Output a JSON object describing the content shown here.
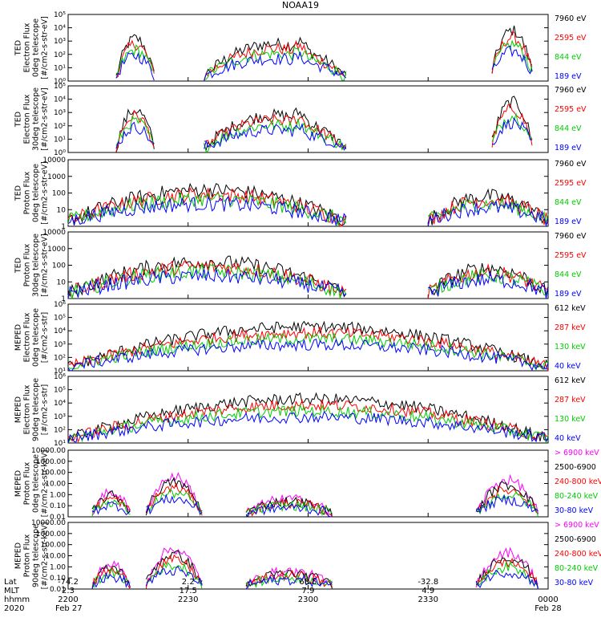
{
  "title": "NOAA19",
  "chart_data": {
    "type": "line",
    "panels": [
      {
        "ylabel": [
          "TED",
          "Electron Flux",
          "0deg telescope",
          "[#/cm2-s-str-eV]"
        ],
        "yticks": [
          "10⁰",
          "10¹",
          "10²",
          "10³",
          "10⁴",
          "10⁵"
        ],
        "ylim": [
          1,
          100000
        ],
        "scale": "log",
        "legend": [
          {
            "label": "7960 eV",
            "color": "#000000"
          },
          {
            "label": "2595 eV",
            "color": "#ff0000"
          },
          {
            "label": "844 eV",
            "color": "#00cc00"
          },
          {
            "label": "189 eV",
            "color": "#0000ff"
          }
        ]
      },
      {
        "ylabel": [
          "TED",
          "Electron Flux",
          "30deg telescope",
          "[#/cm2-s-str-eV]"
        ],
        "yticks": [
          "10⁰",
          "10¹",
          "10²",
          "10³",
          "10⁴",
          "10⁵"
        ],
        "ylim": [
          1,
          100000
        ],
        "scale": "log",
        "legend": [
          {
            "label": "7960 eV",
            "color": "#000000"
          },
          {
            "label": "2595 eV",
            "color": "#ff0000"
          },
          {
            "label": "844 eV",
            "color": "#00cc00"
          },
          {
            "label": "189 eV",
            "color": "#0000ff"
          }
        ]
      },
      {
        "ylabel": [
          "TED",
          "Proton Flux",
          "0deg telescope",
          "[#/cm2-s-str-eV]"
        ],
        "yticks": [
          "1",
          "10",
          "100",
          "1000",
          "10000"
        ],
        "ylim": [
          1,
          10000
        ],
        "scale": "log",
        "legend": [
          {
            "label": "7960 eV",
            "color": "#000000"
          },
          {
            "label": "2595 eV",
            "color": "#ff0000"
          },
          {
            "label": "844 eV",
            "color": "#00cc00"
          },
          {
            "label": "189 eV",
            "color": "#0000ff"
          }
        ]
      },
      {
        "ylabel": [
          "TED",
          "Proton Flux",
          "30deg telescope",
          "[#/cm2-s-str-eV]"
        ],
        "yticks": [
          "1",
          "10",
          "100",
          "1000",
          "10000"
        ],
        "ylim": [
          1,
          10000
        ],
        "scale": "log",
        "legend": [
          {
            "label": "7960 eV",
            "color": "#000000"
          },
          {
            "label": "2595 eV",
            "color": "#ff0000"
          },
          {
            "label": "844 eV",
            "color": "#00cc00"
          },
          {
            "label": "189 eV",
            "color": "#0000ff"
          }
        ]
      },
      {
        "ylabel": [
          "MEPED",
          "Electron Flux",
          "0deg telescope",
          "[#/cm2-s-str]"
        ],
        "yticks": [
          "10¹",
          "10²",
          "10³",
          "10⁴",
          "10⁵",
          "10⁶"
        ],
        "ylim": [
          10,
          1000000
        ],
        "scale": "log",
        "legend": [
          {
            "label": "612 keV",
            "color": "#000000"
          },
          {
            "label": "287 keV",
            "color": "#ff0000"
          },
          {
            "label": "130 keV",
            "color": "#00cc00"
          },
          {
            "label": "40 keV",
            "color": "#0000ff"
          }
        ]
      },
      {
        "ylabel": [
          "MEPED",
          "Electron Flux",
          "90deg telescope",
          "[#/cm2-s-str]"
        ],
        "yticks": [
          "10¹",
          "10²",
          "10³",
          "10⁴",
          "10⁵",
          "10⁶"
        ],
        "ylim": [
          10,
          1000000
        ],
        "scale": "log",
        "legend": [
          {
            "label": "612 keV",
            "color": "#000000"
          },
          {
            "label": "287 keV",
            "color": "#ff0000"
          },
          {
            "label": "130 keV",
            "color": "#00cc00"
          },
          {
            "label": "40 keV",
            "color": "#0000ff"
          }
        ]
      },
      {
        "ylabel": [
          "MEPED",
          "Proton Flux",
          "0deg telescope",
          "[#/cm2-s-str-keV]"
        ],
        "yticks": [
          "0.01",
          "0.10",
          "1.00",
          "10.00",
          "100.00",
          "1000.00",
          "10000.00"
        ],
        "ylim": [
          0.01,
          10000
        ],
        "scale": "log",
        "legend": [
          {
            "label": "> 6900 keV",
            "color": "#ff00ff"
          },
          {
            "label": "2500-6900",
            "color": "#000000"
          },
          {
            "label": "240-800 keV",
            "color": "#ff0000"
          },
          {
            "label": "80-240 keV",
            "color": "#00cc00"
          },
          {
            "label": "30-80 keV",
            "color": "#0000ff"
          }
        ]
      },
      {
        "ylabel": [
          "MEPED",
          "Proton Flux",
          "90deg telescope",
          "[#/cm2-s-str-keV]"
        ],
        "yticks": [
          "0.01",
          "0.10",
          "1.00",
          "10.00",
          "100.00",
          "1000.00",
          "10000.00"
        ],
        "ylim": [
          0.01,
          10000
        ],
        "scale": "log",
        "legend": [
          {
            "label": "> 6900 keV",
            "color": "#ff00ff"
          },
          {
            "label": "2500-6900",
            "color": "#000000"
          },
          {
            "label": "240-800 keV",
            "color": "#ff0000"
          },
          {
            "label": "80-240 keV",
            "color": "#00cc00"
          },
          {
            "label": "30-80 keV",
            "color": "#0000ff"
          }
        ]
      }
    ],
    "xaxis": {
      "row_labels": [
        "Lat",
        "MLT",
        "hhmm",
        "2020"
      ],
      "ticks": [
        {
          "lat": "-74.2",
          "mlt": "2.3",
          "hhmm": "2200",
          "frac": 0.0
        },
        {
          "lat": "2.2",
          "mlt": "17.5",
          "hhmm": "2230",
          "frac": 0.25
        },
        {
          "lat": "68.5",
          "mlt": "7.9",
          "hhmm": "2300",
          "frac": 0.5
        },
        {
          "lat": "-32.8",
          "mlt": "4.9",
          "hhmm": "2330",
          "frac": 0.75
        }
      ],
      "start_date": "Feb 27",
      "end_label": "0000",
      "end_date": "Feb 28"
    }
  }
}
